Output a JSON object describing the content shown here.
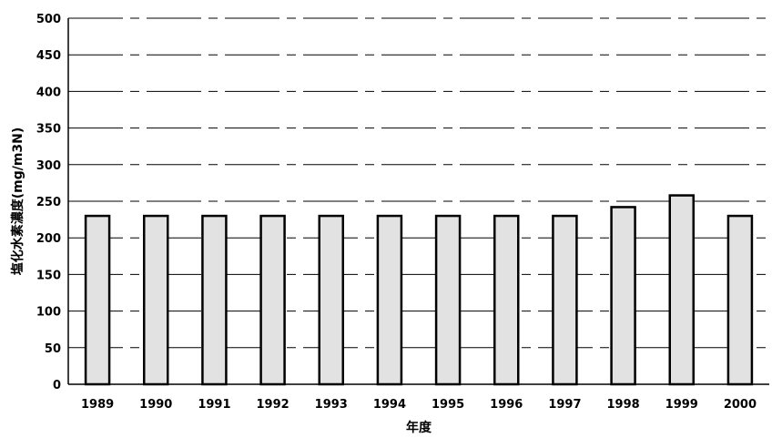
{
  "chart_data": {
    "type": "bar",
    "categories": [
      "1989",
      "1990",
      "1991",
      "1992",
      "1993",
      "1994",
      "1995",
      "1996",
      "1997",
      "1998",
      "1999",
      "2000"
    ],
    "values": [
      230,
      230,
      230,
      230,
      230,
      230,
      230,
      230,
      230,
      242,
      258,
      230
    ],
    "title": "",
    "xlabel": "年度",
    "ylabel": "塩化水素濃度(mg/m3N)",
    "ylim": [
      0,
      500
    ],
    "yticks": [
      0,
      50,
      100,
      150,
      200,
      250,
      300,
      350,
      400,
      450,
      500
    ],
    "grid": true,
    "legend": "none",
    "bar_fill": "#e2e2e2",
    "bar_stroke": "#000000"
  }
}
